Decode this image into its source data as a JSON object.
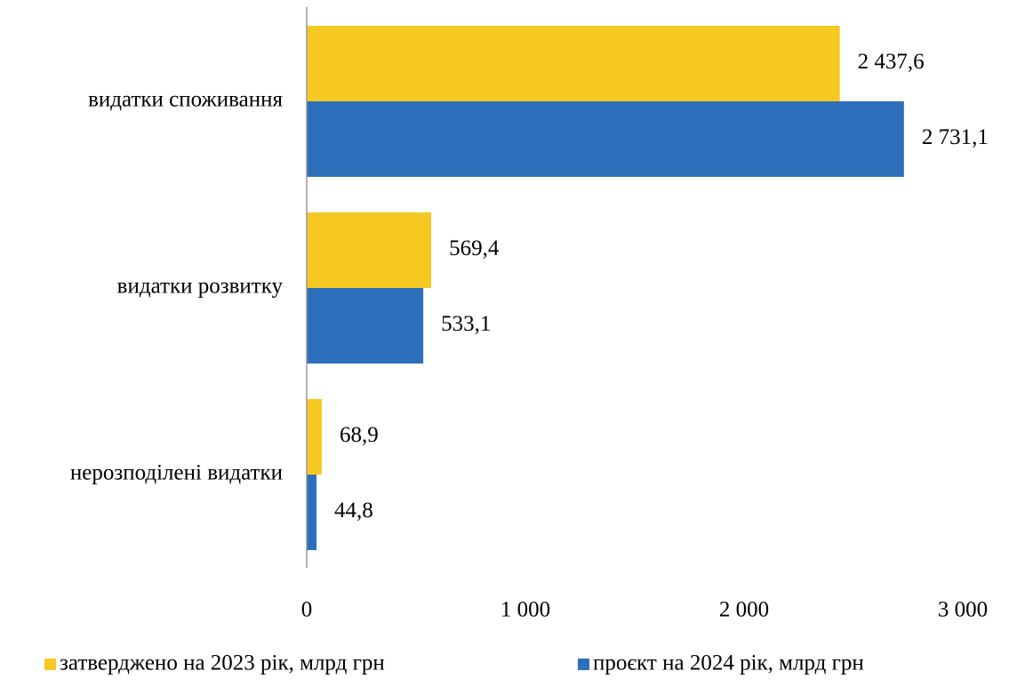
{
  "chart_data": {
    "type": "barh",
    "categories": [
      "видатки споживання",
      "видатки розвитку",
      "нерозподілені видатки"
    ],
    "series": [
      {
        "name": "затверджено на 2023 рік, млрд грн",
        "color": "#f5c922",
        "values": [
          2437.6,
          569.4,
          68.9
        ],
        "value_labels": [
          "2 437,6",
          "569,4",
          "68,9"
        ]
      },
      {
        "name": "проєкт на 2024 рік, млрд грн",
        "color": "#2e6fbc",
        "values": [
          2731.1,
          533.1,
          44.8
        ],
        "value_labels": [
          "2 731,1",
          "533,1",
          "44,8"
        ]
      }
    ],
    "xlim": [
      0,
      3000
    ],
    "xticks": [
      0,
      {
        "value": 1000,
        "label": "1 000"
      },
      {
        "value": 2000,
        "label": "2 000"
      },
      {
        "value": 3000,
        "label": "3 000"
      }
    ],
    "legend": "bottom"
  }
}
